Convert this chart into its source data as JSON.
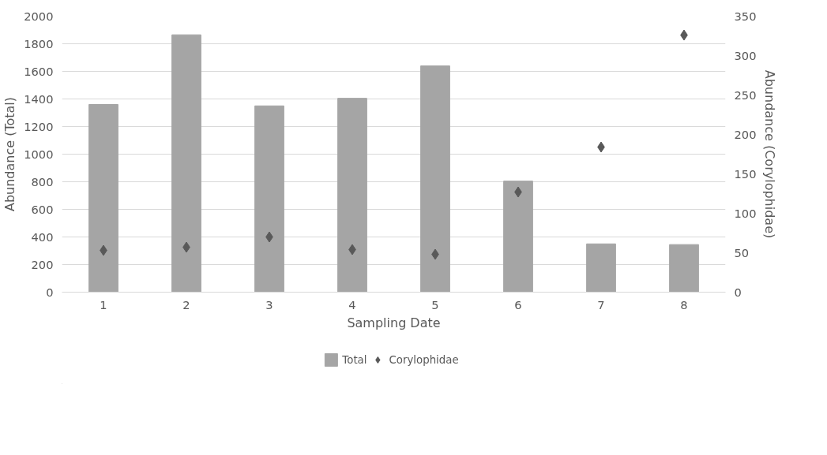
{
  "chart_data": {
    "type": "bar",
    "xlabel": "Sampling Date",
    "ylabel": "Abundance (Total)",
    "y2label": "Abundance (Corylophidae)",
    "categories": [
      "1",
      "2",
      "3",
      "4",
      "5",
      "6",
      "7",
      "8"
    ],
    "ylim": [
      0,
      2000
    ],
    "yticks": [
      0,
      200,
      400,
      600,
      800,
      1000,
      1200,
      1400,
      1600,
      1800,
      2000
    ],
    "y2lim": [
      0,
      350
    ],
    "y2ticks": [
      0,
      50,
      100,
      150,
      200,
      250,
      300,
      350
    ],
    "grid": "y",
    "legend": "bottom",
    "series": [
      {
        "name": "Total",
        "color": "#a5a5a5",
        "values": [
          1360,
          1865,
          1350,
          1405,
          1640,
          805,
          350,
          345
        ]
      },
      {
        "name": "Corylophidae",
        "type": "scatter",
        "axis": "y2",
        "marker": "diamond",
        "color": "#595959",
        "values": [
          53,
          57,
          70,
          54,
          48,
          127,
          184,
          326
        ]
      }
    ]
  }
}
